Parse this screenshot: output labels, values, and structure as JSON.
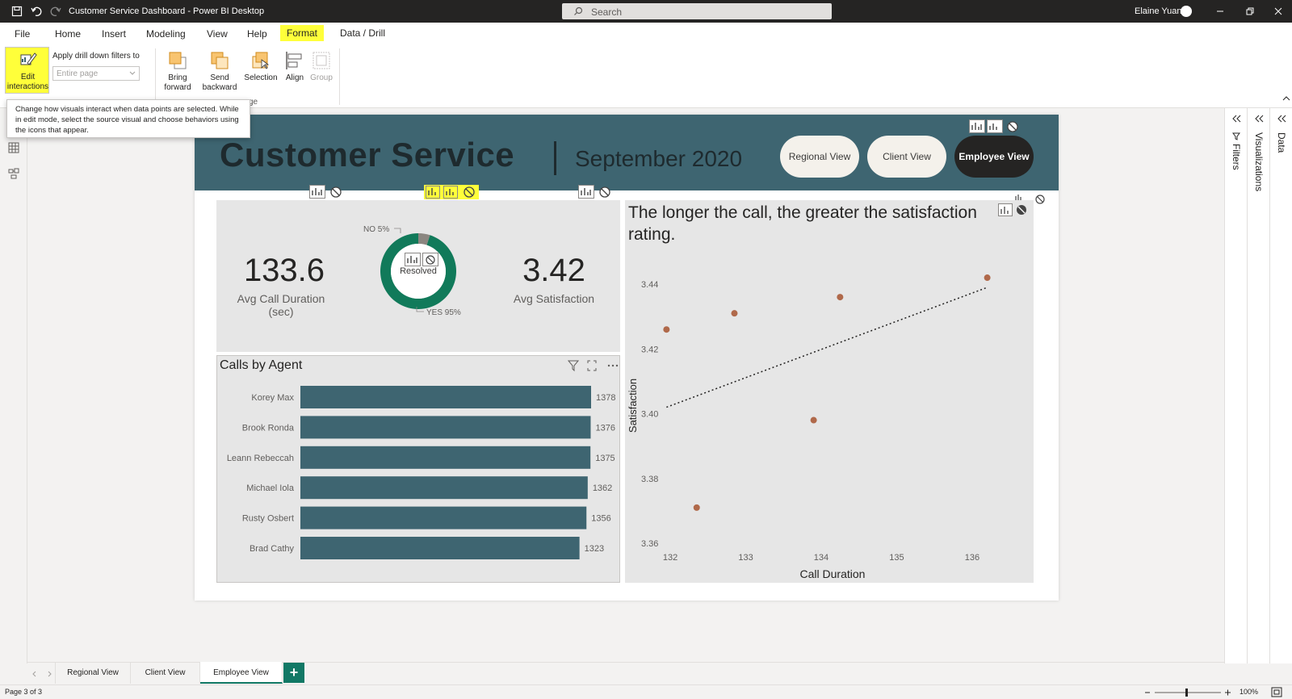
{
  "titlebar": {
    "app_title": "Customer Service Dashboard - Power BI Desktop",
    "search_placeholder": "Search",
    "user_name": "Elaine Yuan"
  },
  "menu": [
    "File",
    "Home",
    "Insert",
    "Modeling",
    "View",
    "Help",
    "Format",
    "Data / Drill"
  ],
  "ribbon": {
    "edit_interactions": "Edit interactions",
    "drill_filters_label": "Apply drill down filters to",
    "drill_filters_value": "Entire page",
    "bring_forward": "Bring forward",
    "send_backward": "Send backward",
    "selection": "Selection",
    "align": "Align",
    "group": "Group",
    "group_label_fragment": "ge"
  },
  "tooltip": "Change how visuals interact when data points are selected. While in edit mode, select the source visual and choose behaviors using the icons that appear.",
  "report": {
    "title": "Customer Service",
    "month": "September 2020",
    "nav": [
      "Regional View",
      "Client View",
      "Employee View"
    ]
  },
  "kpis": {
    "avg_call_duration": {
      "value": "133.6",
      "label": "Avg Call Duration (sec)"
    },
    "avg_satisfaction": {
      "value": "3.42",
      "label": "Avg Satisfaction"
    }
  },
  "chart_data": [
    {
      "type": "pie",
      "center_label": "Resolved",
      "categories": [
        "NO",
        "YES"
      ],
      "values": [
        5,
        95
      ],
      "slice_labels": [
        "NO 5%",
        "YES 95%"
      ],
      "colors": [
        "#8b8680",
        "#117a5a"
      ]
    },
    {
      "type": "bar",
      "title": "Calls by Agent",
      "categories": [
        "Korey Max",
        "Brook Ronda",
        "Leann Rebeccah",
        "Michael Iola",
        "Rusty Osbert",
        "Brad Cathy"
      ],
      "values": [
        1378,
        1376,
        1375,
        1362,
        1356,
        1323
      ],
      "xlim": [
        0,
        1378
      ],
      "color": "#3e6571"
    },
    {
      "type": "scatter",
      "title": "The longer the call, the greater the satisfaction rating.",
      "xlabel": "Call Duration",
      "ylabel": "Satisfaction",
      "xlim": [
        131.7,
        136.6
      ],
      "ylim": [
        3.36,
        3.445
      ],
      "xticks": [
        132,
        133,
        134,
        135,
        136
      ],
      "yticks": [
        "3.36",
        "3.38",
        "3.40",
        "3.42",
        "3.44"
      ],
      "x": [
        131.95,
        132.35,
        132.85,
        133.9,
        134.25,
        136.2
      ],
      "y": [
        3.426,
        3.371,
        3.431,
        3.398,
        3.436,
        3.442
      ],
      "trendline": {
        "x": [
          131.95,
          136.2
        ],
        "y": [
          3.402,
          3.439
        ]
      },
      "point_color": "#b0694a"
    }
  ],
  "right_panes": [
    "Filters",
    "Visualizations",
    "Data"
  ],
  "tabs": [
    "Regional View",
    "Client View",
    "Employee View"
  ],
  "status": {
    "page": "Page 3 of 3",
    "zoom": "100%"
  }
}
